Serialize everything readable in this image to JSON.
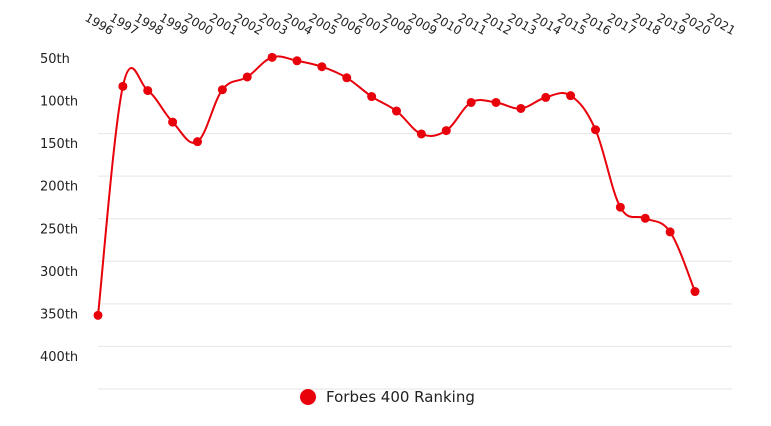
{
  "chart_data": {
    "type": "line",
    "title": "",
    "xlabel": "",
    "ylabel": "",
    "y_inverted": true,
    "ylim": [
      50,
      400
    ],
    "y_ticks": [
      "50th",
      "100th",
      "150th",
      "200th",
      "250th",
      "300th",
      "350th",
      "400th"
    ],
    "y_tick_values": [
      50,
      100,
      150,
      200,
      250,
      300,
      350,
      400
    ],
    "categories": [
      "1996",
      "1997",
      "1998",
      "1999",
      "2000",
      "2001",
      "2002",
      "2003",
      "2004",
      "2005",
      "2006",
      "2007",
      "2008",
      "2009",
      "2010",
      "2011",
      "2012",
      "2013",
      "2014",
      "2015",
      "2016",
      "2017",
      "2018",
      "2019",
      "2020",
      "2021"
    ],
    "grid": true,
    "legend_position": "bottom-center",
    "series": [
      {
        "name": "Forbes 400 Ranking",
        "color": "#e8000b",
        "x": [
          "1996",
          "1997",
          "1998",
          "1999",
          "2000",
          "2001",
          "2002",
          "2003",
          "2004",
          "2005",
          "2006",
          "2007",
          "2008",
          "2009",
          "2010",
          "2011",
          "2012",
          "2013",
          "2014",
          "2015",
          "2016",
          "2017",
          "2018",
          "2019",
          "2020"
        ],
        "values": [
          364,
          95,
          100,
          137,
          160,
          99,
          84,
          61,
          65,
          72,
          85,
          107,
          124,
          151,
          147,
          114,
          114,
          121,
          108,
          106,
          146,
          237,
          250,
          266,
          336
        ]
      }
    ]
  }
}
